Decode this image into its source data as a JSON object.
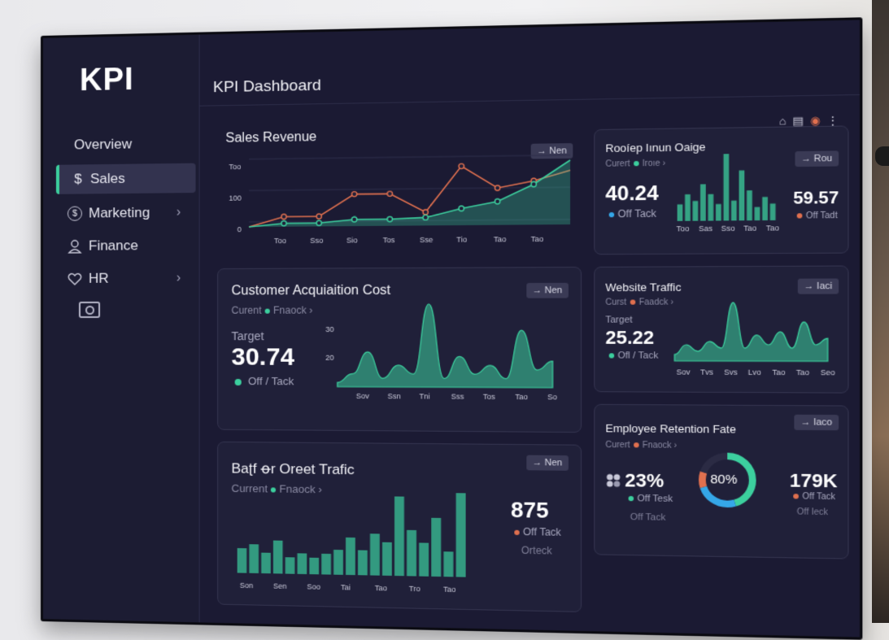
{
  "sidebar": {
    "logo": "KPI",
    "items": [
      {
        "label": "Overview",
        "icon": "",
        "chevron": ""
      },
      {
        "label": "Sales",
        "icon": "$",
        "chevron": ""
      },
      {
        "label": "Marketing",
        "icon": "$",
        "chevron": "›"
      },
      {
        "label": "Finance",
        "icon": "person-icon",
        "chevron": ""
      },
      {
        "label": "HR",
        "icon": "heart-icon",
        "chevron": "›"
      }
    ],
    "extra_icon": "camera-icon"
  },
  "header": {
    "title": "KPI Dashboard",
    "icons": [
      "home-icon",
      "document-icon",
      "alert-icon",
      "more-icon"
    ]
  },
  "colors": {
    "accent": "#3ccf9e",
    "line_orange": "#e0704f",
    "bg": "#1b1a33",
    "blue": "#35a7e8"
  },
  "cards": {
    "sales": {
      "title": "Sales Revenue",
      "button": "→ Nen",
      "chart_data": {
        "type": "line",
        "y_ticks": [
          "Too",
          "100",
          "0"
        ],
        "x_ticks": [
          "Too",
          "Sso",
          "Sio",
          "Tos",
          "Sse",
          "Tio",
          "Tao",
          "Tao"
        ],
        "series": [
          {
            "color": "#e0704f",
            "values": [
              0,
              15,
              15,
              48,
              48,
              20,
              88,
              55,
              65,
              80
            ]
          },
          {
            "color": "#3ccf9e",
            "values": [
              0,
              5,
              5,
              10,
              10,
              12,
              25,
              35,
              60,
              95
            ]
          }
        ]
      }
    },
    "roi": {
      "title": "Rooíep Iınun Oaige",
      "button": "→ Rou",
      "sub_current": "Curert",
      "sub_track": "Iroıe",
      "value_left": "40.24",
      "left_label": "Off Tack",
      "value_right": "59.57",
      "right_label": "Off Tadt",
      "chart_data": {
        "type": "bar",
        "x_ticks": [
          "Too",
          "Sas",
          "Sso",
          "Tao",
          "Tao"
        ],
        "values": [
          25,
          40,
          30,
          55,
          40,
          25,
          100,
          30,
          75,
          45,
          20,
          35,
          25
        ]
      }
    },
    "cac": {
      "title": "Customer Acquiaition Cost",
      "button": "→ Nen",
      "sub_current": "Curent",
      "sub_track": "Fnaock",
      "target_label": "Target",
      "value": "30.74",
      "value_label": "Off / Tack",
      "chart_data": {
        "type": "area",
        "y_ticks": [
          "30",
          "20"
        ],
        "x_ticks": [
          "Sov",
          "Ssn",
          "Tni",
          "Sss",
          "Tos",
          "Tao",
          "So"
        ],
        "values": [
          5,
          15,
          40,
          10,
          25,
          15,
          95,
          10,
          35,
          15,
          25,
          10,
          65,
          20,
          30
        ]
      }
    },
    "web": {
      "title": "Website Traffic",
      "button": "→ Iaci",
      "sub_current": "Curst",
      "sub_track": "Faadck",
      "target_label": "Target",
      "value": "25.22",
      "value_label": "Ofl / Tack",
      "chart_data": {
        "type": "area",
        "x_ticks": [
          "Sov",
          "Tvs",
          "Svs",
          "Lvo",
          "Tao",
          "Tao",
          "Seo"
        ],
        "values": [
          10,
          25,
          15,
          30,
          20,
          90,
          20,
          40,
          25,
          45,
          20,
          60,
          25,
          35
        ]
      }
    },
    "bofo": {
      "title": "Baʈf ꝋr Oreet Trafic",
      "button": "→ Nen",
      "sub_current": "Current",
      "sub_track": "Fnaock",
      "value": "875",
      "value_label": "Off Tack",
      "value_sub": "Orteck",
      "chart_data": {
        "type": "bar",
        "x_ticks": [
          "Son",
          "Sen",
          "Soo",
          "Tai",
          "Tao",
          "Tro",
          "Tao"
        ],
        "values": [
          30,
          35,
          25,
          40,
          20,
          25,
          20,
          25,
          30,
          45,
          30,
          50,
          40,
          95,
          55,
          40,
          70,
          30,
          100
        ]
      }
    },
    "retention": {
      "title": "Employee Retention Fate",
      "button": "→ Iaco",
      "sub_current": "Curert",
      "sub_track": "Fnaock",
      "value_left": "23%",
      "left_label": "Off Tesk",
      "left_sub": "Off Tack",
      "donut_label": "80%",
      "value_right": "179K",
      "right_label": "Off Tack",
      "right_sub": "Off Ieck",
      "chart_data": {
        "type": "pie",
        "slices": [
          {
            "color": "#3ccf9e",
            "value": 45
          },
          {
            "color": "#35a7e8",
            "value": 25
          },
          {
            "color": "#e0704f",
            "value": 10
          },
          {
            "color": "#2b2b44",
            "value": 20
          }
        ]
      }
    }
  }
}
